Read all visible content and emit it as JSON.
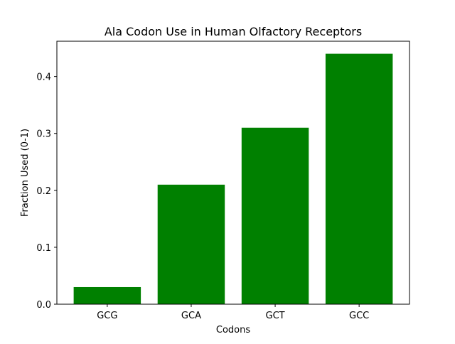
{
  "chart_data": {
    "type": "bar",
    "title": "Ala Codon Use in Human Olfactory Receptors",
    "xlabel": "Codons",
    "ylabel": "Fraction Used (0-1)",
    "categories": [
      "GCG",
      "GCA",
      "GCT",
      "GCC"
    ],
    "values": [
      0.03,
      0.21,
      0.31,
      0.44
    ],
    "ylim": [
      0,
      0.462
    ],
    "yticks": [
      0.0,
      0.1,
      0.2,
      0.3,
      0.4
    ],
    "ytick_labels": [
      "0.0",
      "0.1",
      "0.2",
      "0.3",
      "0.4"
    ],
    "bar_color": "#008000",
    "grid": false,
    "legend": "none"
  }
}
